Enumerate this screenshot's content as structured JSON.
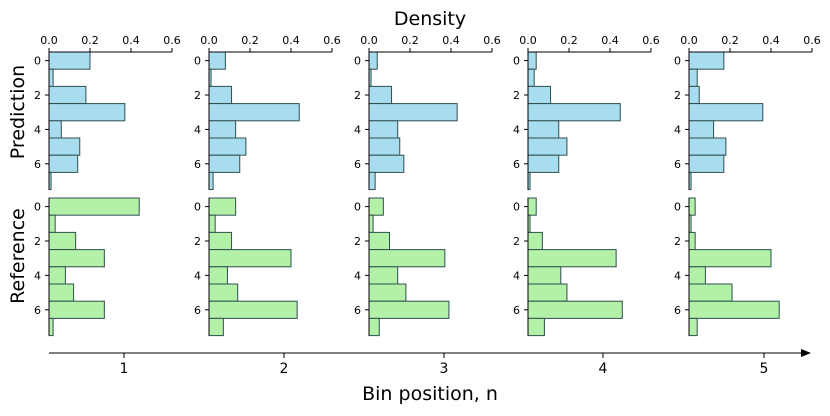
{
  "chart_data": {
    "type": "bar",
    "orientation": "horizontal",
    "layout": "2 rows x 5 columns of small-multiple histograms",
    "title": "Density",
    "xlabel": "Bin position, n",
    "row_labels": [
      "Prediction",
      "Reference"
    ],
    "column_labels": [
      "1",
      "2",
      "3",
      "4",
      "5"
    ],
    "density_axis": {
      "range": [
        0,
        0.6
      ],
      "ticks": [
        "0.0",
        "0.2",
        "0.4",
        "0.6"
      ],
      "position": "top"
    },
    "bin_axis": {
      "range": [
        -0.5,
        7.5
      ],
      "ticks": [
        "0",
        "2",
        "4",
        "6"
      ],
      "inverted": true
    },
    "bins": [
      0,
      1,
      2,
      3,
      4,
      5,
      6,
      7
    ],
    "series": [
      {
        "name": "Prediction",
        "color": "#a8dcef",
        "edge": "#2f4f4f",
        "panels": [
          [
            0.2,
            0.02,
            0.18,
            0.37,
            0.06,
            0.15,
            0.14,
            0.01
          ],
          [
            0.08,
            0.01,
            0.11,
            0.44,
            0.13,
            0.18,
            0.15,
            0.02
          ],
          [
            0.04,
            0.01,
            0.11,
            0.43,
            0.14,
            0.15,
            0.17,
            0.03
          ],
          [
            0.04,
            0.03,
            0.11,
            0.45,
            0.15,
            0.19,
            0.15,
            0.01
          ],
          [
            0.17,
            0.04,
            0.05,
            0.36,
            0.12,
            0.18,
            0.17,
            0.01
          ]
        ]
      },
      {
        "name": "Reference",
        "color": "#b3f0a8",
        "edge": "#2f4f4f",
        "panels": [
          [
            0.44,
            0.03,
            0.13,
            0.27,
            0.08,
            0.12,
            0.27,
            0.02
          ],
          [
            0.13,
            0.03,
            0.11,
            0.4,
            0.09,
            0.14,
            0.43,
            0.07
          ],
          [
            0.07,
            0.02,
            0.1,
            0.37,
            0.14,
            0.18,
            0.39,
            0.05
          ],
          [
            0.04,
            0.01,
            0.07,
            0.43,
            0.16,
            0.19,
            0.46,
            0.08
          ],
          [
            0.03,
            0.01,
            0.03,
            0.4,
            0.08,
            0.21,
            0.44,
            0.04
          ]
        ]
      }
    ]
  }
}
